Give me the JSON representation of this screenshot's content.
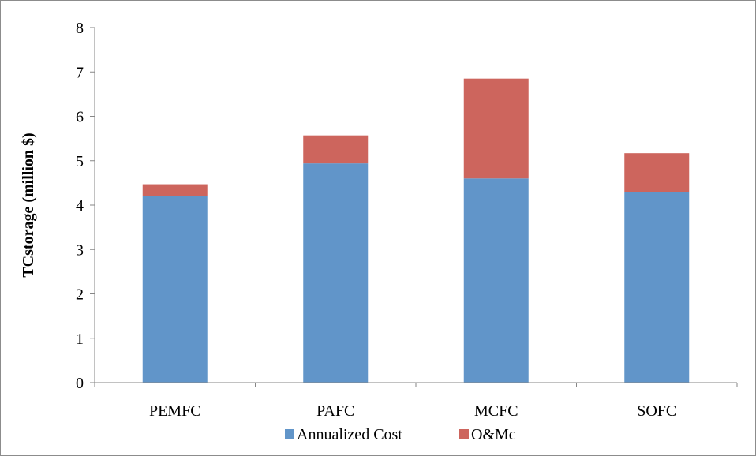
{
  "chart_data": {
    "type": "bar",
    "stacked": true,
    "title": "",
    "xlabel": "",
    "ylabel": "TCstorage (million $)",
    "ylim": [
      0,
      8
    ],
    "yticks": [
      0,
      1,
      2,
      3,
      4,
      5,
      6,
      7,
      8
    ],
    "grid": false,
    "legend_position": "bottom",
    "categories": [
      "PEMFC",
      "PAFC",
      "MCFC",
      "SOFC"
    ],
    "series": [
      {
        "name": "Annualized Cost",
        "color": "#6195c9",
        "values": [
          4.2,
          4.94,
          4.6,
          4.3
        ]
      },
      {
        "name": "O&Mc",
        "color": "#cd655d",
        "values": [
          0.27,
          0.63,
          2.25,
          0.87
        ]
      }
    ]
  }
}
